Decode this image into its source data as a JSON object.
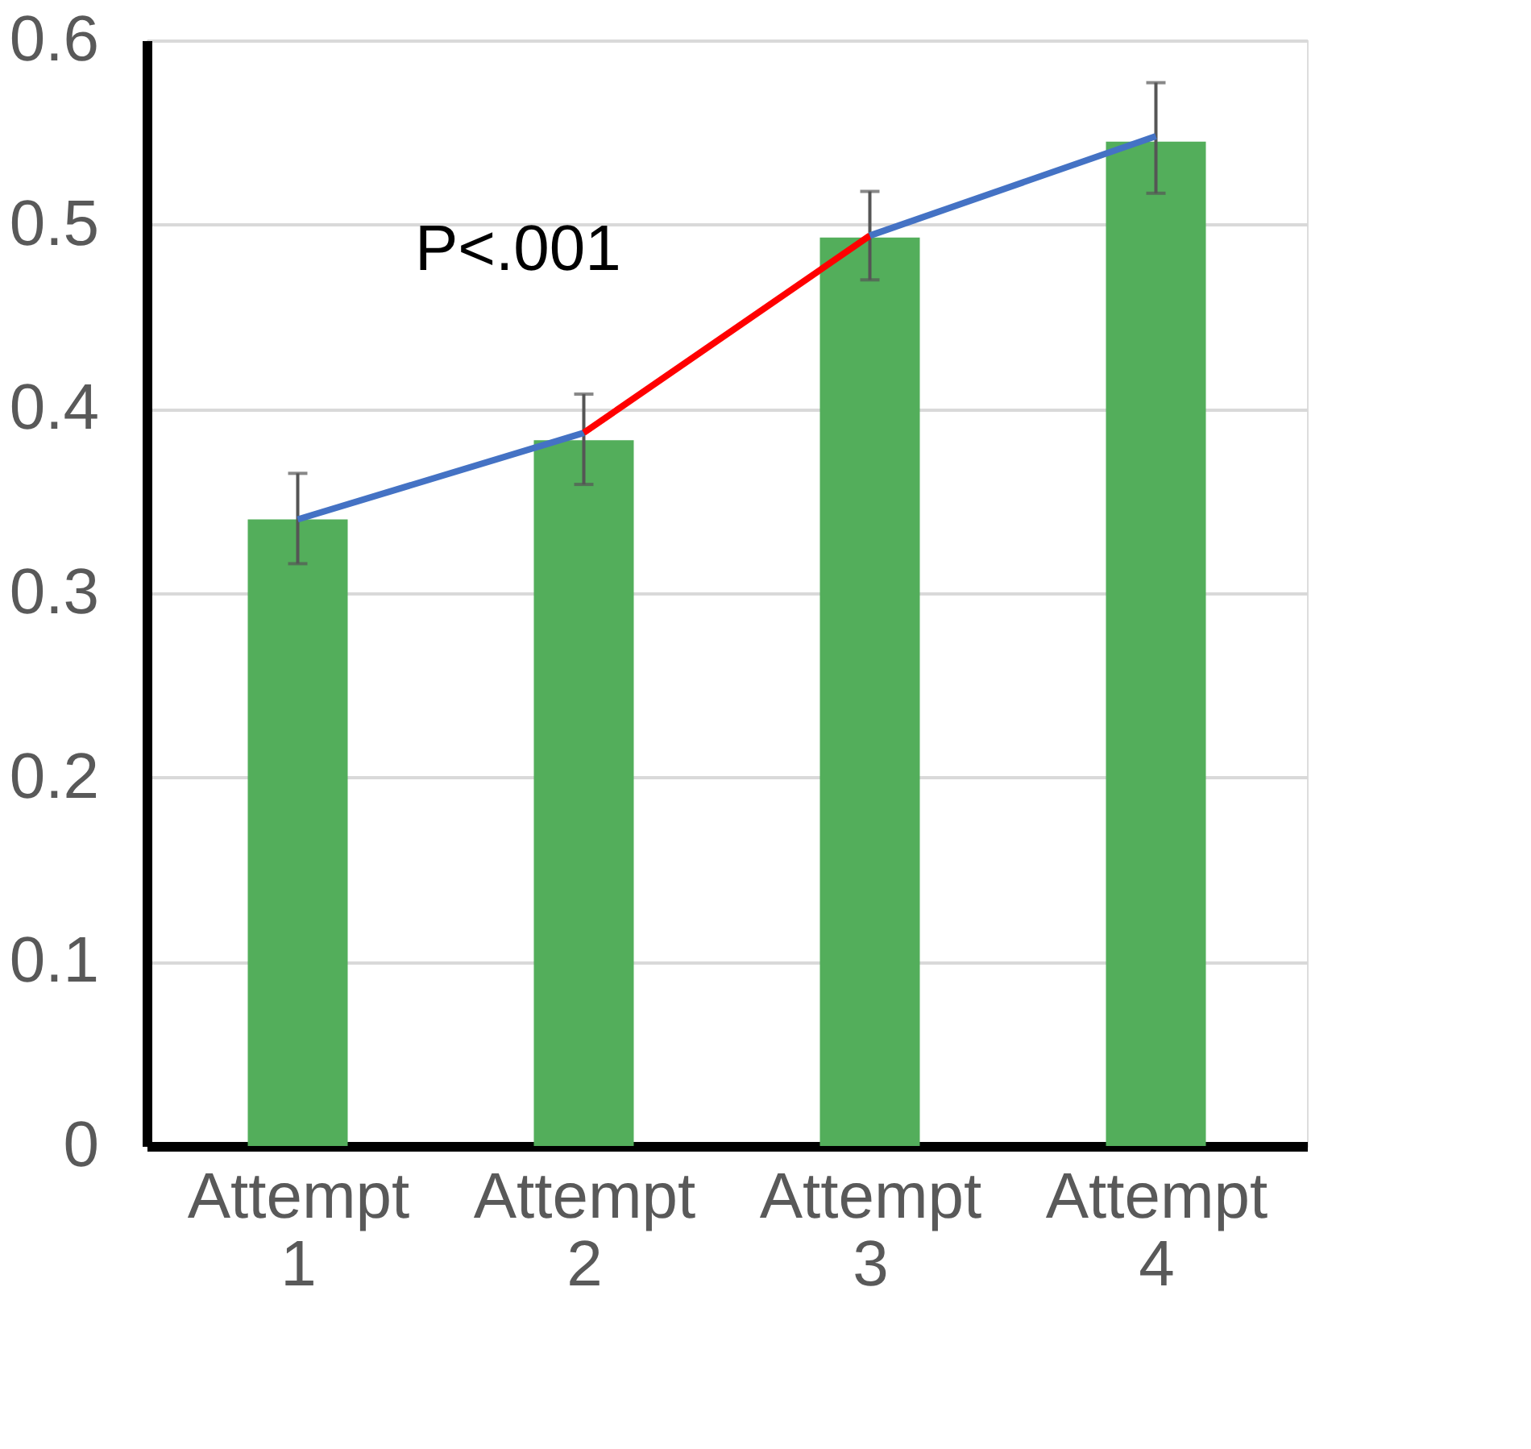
{
  "chart_data": {
    "type": "bar",
    "categories": [
      "Attempt 1",
      "Attempt 2",
      "Attempt 3",
      "Attempt 4"
    ],
    "series": [
      {
        "color": "#53ae5b",
        "values": [
          0.34,
          0.383,
          0.493,
          0.545
        ],
        "errors": [
          [
            0.316,
            0.365
          ],
          [
            0.359,
            0.408
          ],
          [
            0.47,
            0.518
          ],
          [
            0.517,
            0.577
          ]
        ]
      },
      {
        "type": "line",
        "color": "#4472c4",
        "values": [
          0.34,
          0.387,
          null,
          null
        ]
      },
      {
        "type": "line",
        "color": "#ff0000",
        "values": [
          null,
          0.387,
          0.494,
          null
        ]
      },
      {
        "type": "line",
        "color": "#4472c4",
        "values": [
          null,
          null,
          0.494,
          0.548
        ]
      }
    ],
    "ylim": [
      0,
      0.6
    ],
    "yticks": [
      0,
      0.1,
      0.2,
      0.3,
      0.4,
      0.5,
      0.6
    ],
    "grid": "y",
    "annotations": [
      "P<.001"
    ]
  }
}
